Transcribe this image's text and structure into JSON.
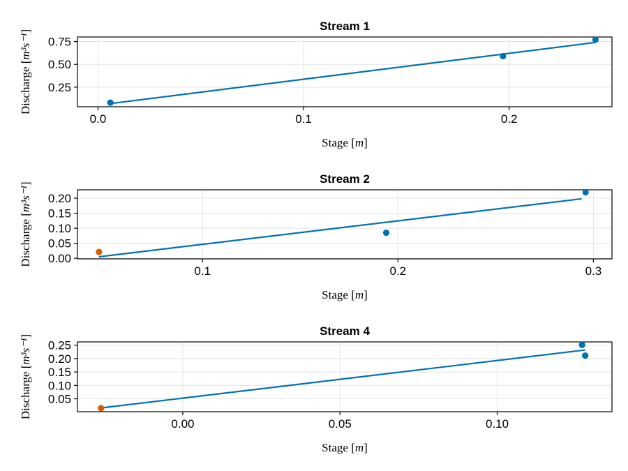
{
  "chart_data": [
    {
      "type": "scatter",
      "title": "Stream 1",
      "xlabel": "Stage [m]",
      "ylabel": "Discharge [m³s⁻¹]",
      "xlim": [
        -0.01,
        0.25
      ],
      "ylim": [
        0.035,
        0.8
      ],
      "xticks": [
        0.0,
        0.1,
        0.2
      ],
      "xtick_labels": [
        "0.0",
        "0.1",
        "0.2"
      ],
      "yticks": [
        0.25,
        0.5,
        0.75
      ],
      "ytick_labels": [
        "0.25",
        "0.50",
        "0.75"
      ],
      "grid": true,
      "series": [
        {
          "kind": "points",
          "color": "#0072b2",
          "x": [
            0.006,
            0.197,
            0.242
          ],
          "y": [
            0.08,
            0.59,
            0.77
          ]
        },
        {
          "kind": "line",
          "color": "#0072b2",
          "x": [
            0.006,
            0.242
          ],
          "y": [
            0.07,
            0.74
          ]
        }
      ]
    },
    {
      "type": "scatter",
      "title": "Stream 2",
      "xlabel": "Stage [m]",
      "ylabel": "Discharge [m³s⁻¹]",
      "xlim": [
        0.036,
        0.3095
      ],
      "ylim": [
        -0.002,
        0.228
      ],
      "xticks": [
        0.1,
        0.2,
        0.3
      ],
      "xtick_labels": [
        "0.1",
        "0.2",
        "0.3"
      ],
      "yticks": [
        0.0,
        0.05,
        0.1,
        0.15,
        0.2
      ],
      "ytick_labels": [
        "0.00",
        "0.05",
        "0.10",
        "0.15",
        "0.20"
      ],
      "grid": true,
      "series": [
        {
          "kind": "points",
          "color": "#0072b2",
          "x": [
            0.194,
            0.296
          ],
          "y": [
            0.085,
            0.22
          ]
        },
        {
          "kind": "points",
          "color": "#d55e00",
          "x": [
            0.047
          ],
          "y": [
            0.021
          ]
        },
        {
          "kind": "line",
          "color": "#0072b2",
          "x": [
            0.047,
            0.294
          ],
          "y": [
            0.005,
            0.198
          ]
        }
      ]
    },
    {
      "type": "scatter",
      "title": "Stream 4",
      "xlabel": "Stage [m]",
      "ylabel": "Discharge [m³s⁻¹]",
      "xlim": [
        -0.0335,
        0.1365
      ],
      "ylim": [
        0.002,
        0.262
      ],
      "xticks": [
        0.0,
        0.05,
        0.1
      ],
      "xtick_labels": [
        "0.00",
        "0.05",
        "0.10"
      ],
      "yticks": [
        0.05,
        0.1,
        0.15,
        0.2,
        0.25
      ],
      "ytick_labels": [
        "0.05",
        "0.10",
        "0.15",
        "0.20",
        "0.25"
      ],
      "grid": true,
      "series": [
        {
          "kind": "points",
          "color": "#0072b2",
          "x": [
            0.127,
            0.128
          ],
          "y": [
            0.251,
            0.211
          ]
        },
        {
          "kind": "points",
          "color": "#d55e00",
          "x": [
            -0.026
          ],
          "y": [
            0.015
          ]
        },
        {
          "kind": "line",
          "color": "#0072b2",
          "x": [
            -0.026,
            0.128
          ],
          "y": [
            0.016,
            0.232
          ]
        }
      ]
    }
  ]
}
